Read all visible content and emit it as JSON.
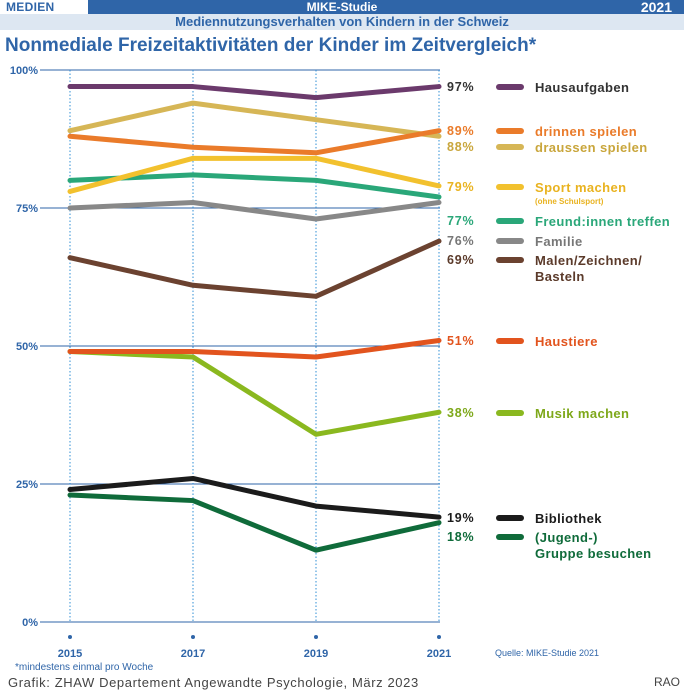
{
  "header": {
    "section": "MEDIEN",
    "study": "MIKE-Studie",
    "year": "2021",
    "subtitle": "Mediennutzungsverhalten von Kindern in der Schweiz"
  },
  "chart_data": {
    "type": "line",
    "title": "Nonmediale Freizeitaktivitäten der Kinder im Zeitvergleich*",
    "x": [
      "2015",
      "2017",
      "2019",
      "2021"
    ],
    "ylim": [
      0,
      100
    ],
    "yticks": [
      {
        "value": 0,
        "label": "0%"
      },
      {
        "value": 25,
        "label": "25%"
      },
      {
        "value": 50,
        "label": "50%"
      },
      {
        "value": 75,
        "label": "75%"
      },
      {
        "value": 100,
        "label": "100%"
      }
    ],
    "series": [
      {
        "name": "Hausaufgaben",
        "values": [
          97,
          97,
          95,
          97
        ],
        "final_label": "97%",
        "color": "#6b3a6c",
        "label_color": "#333333"
      },
      {
        "name": "drinnen spielen",
        "values": [
          88,
          86,
          85,
          89
        ],
        "final_label": "89%",
        "color": "#ea7b2a",
        "label_color": "#ea7b2a"
      },
      {
        "name": "draussen spielen",
        "values": [
          89,
          94,
          91,
          88
        ],
        "final_label": "88%",
        "color": "#d6b656",
        "label_color": "#c9a63c"
      },
      {
        "name": "Sport machen",
        "sub": "(ohne Schulsport)",
        "values": [
          78,
          84,
          84,
          79
        ],
        "final_label": "79%",
        "color": "#f2c12e",
        "label_color": "#e9b320"
      },
      {
        "name": "Freund:innen treffen",
        "values": [
          80,
          81,
          80,
          77
        ],
        "final_label": "77%",
        "color": "#2aa779",
        "label_color": "#2aa779"
      },
      {
        "name": "Familie",
        "values": [
          75,
          76,
          73,
          76
        ],
        "final_label": "76%",
        "color": "#888888",
        "label_color": "#777777"
      },
      {
        "name": "Malen/Zeichnen/ Basteln",
        "values": [
          66,
          61,
          59,
          69
        ],
        "final_label": "69%",
        "color": "#6b4230",
        "label_color": "#5b3a2a"
      },
      {
        "name": "Haustiere",
        "values": [
          49,
          49,
          48,
          51
        ],
        "final_label": "51%",
        "color": "#e2541e",
        "label_color": "#e2541e"
      },
      {
        "name": "Musik machen",
        "values": [
          49,
          48,
          34,
          38
        ],
        "final_label": "38%",
        "color": "#8ab81f",
        "label_color": "#7ea81a"
      },
      {
        "name": "Bibliothek",
        "values": [
          24,
          26,
          21,
          19
        ],
        "final_label": "19%",
        "color": "#1b1b1b",
        "label_color": "#1b1b1b"
      },
      {
        "name": "(Jugend-) Gruppe besuchen",
        "values": [
          23,
          22,
          13,
          18
        ],
        "final_label": "18%",
        "color": "#0f6b3a",
        "label_color": "#0f6b3a"
      }
    ]
  },
  "footnote": "*mindestens einmal pro Woche",
  "source": "Quelle: MIKE-Studie 2021",
  "credit": "Grafik: ZHAW Departement Angewandte Psychologie, März 2023",
  "signature": "RAO"
}
